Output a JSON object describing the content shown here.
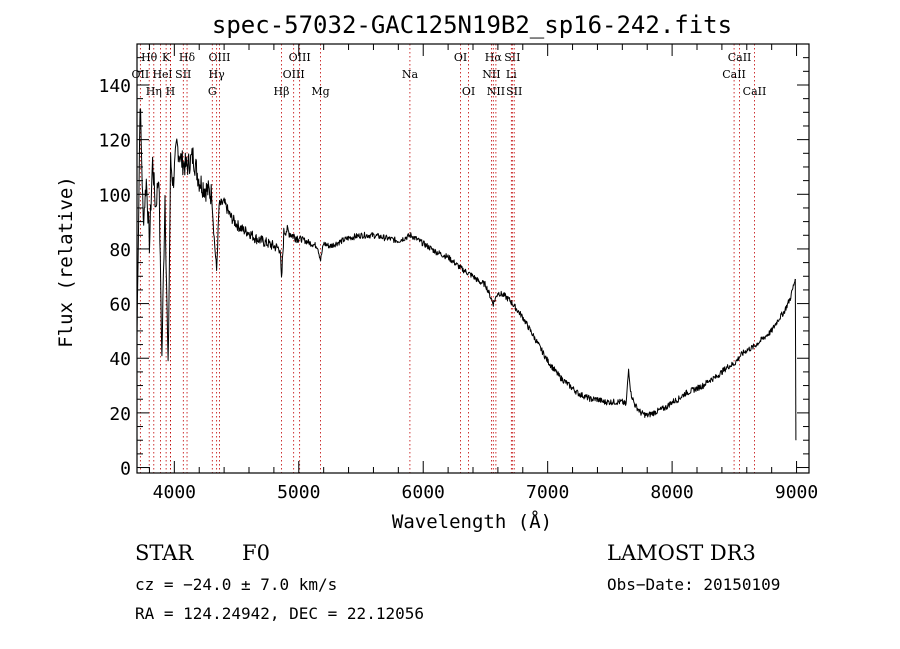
{
  "chart_data": {
    "type": "line",
    "title": "spec-57032-GAC125N19B2_sp16-242.fits",
    "xlabel": "Wavelength (Å)",
    "ylabel": "Flux (relative)",
    "xlim": [
      3700,
      9100
    ],
    "ylim": [
      -2,
      155
    ],
    "xticks": [
      4000,
      5000,
      6000,
      7000,
      8000,
      9000
    ],
    "yticks": [
      0,
      20,
      40,
      60,
      80,
      100,
      120,
      140
    ],
    "grid": false,
    "series": [
      {
        "name": "flux",
        "x": [
          3700,
          3725,
          3750,
          3775,
          3800,
          3825,
          3850,
          3875,
          3900,
          3925,
          3950,
          3970,
          3990,
          4020,
          4060,
          4100,
          4150,
          4200,
          4250,
          4300,
          4320,
          4340,
          4360,
          4400,
          4450,
          4500,
          4550,
          4600,
          4650,
          4700,
          4750,
          4800,
          4850,
          4861,
          4880,
          4900,
          4950,
          5000,
          5050,
          5100,
          5150,
          5175,
          5200,
          5250,
          5300,
          5400,
          5500,
          5600,
          5700,
          5800,
          5900,
          6000,
          6100,
          6200,
          6300,
          6400,
          6450,
          6500,
          6563,
          6600,
          6650,
          6700,
          6750,
          6800,
          6850,
          6900,
          6950,
          7000,
          7050,
          7100,
          7150,
          7200,
          7250,
          7300,
          7350,
          7400,
          7450,
          7500,
          7550,
          7600,
          7630,
          7650,
          7670,
          7700,
          7750,
          7800,
          7850,
          7900,
          7950,
          8000,
          8050,
          8100,
          8150,
          8200,
          8250,
          8300,
          8350,
          8400,
          8450,
          8500,
          8550,
          8600,
          8650,
          8700,
          8750,
          8800,
          8850,
          8900,
          8950,
          8990
        ],
        "y": [
          48,
          135,
          90,
          105,
          82,
          112,
          95,
          108,
          40,
          100,
          35,
          112,
          104,
          118,
          112,
          110,
          114,
          105,
          102,
          100,
          84,
          72,
          96,
          97,
          92,
          89,
          87,
          86,
          84,
          83,
          82,
          81,
          80,
          68,
          86,
          87,
          85,
          84,
          83,
          82,
          81,
          76,
          82,
          81,
          82,
          84,
          85,
          85,
          84,
          83,
          85,
          82,
          79,
          77,
          73,
          70,
          68,
          67,
          60,
          64,
          63,
          61,
          58,
          55,
          51,
          47,
          43,
          39,
          36,
          33,
          31,
          29,
          27,
          26,
          25,
          25,
          24,
          24,
          24,
          24,
          23,
          36,
          27,
          23,
          20,
          19,
          20,
          21,
          22,
          24,
          25,
          27,
          28,
          29,
          30,
          32,
          33,
          35,
          37,
          38,
          41,
          43,
          44,
          46,
          48,
          50,
          54,
          57,
          62,
          69
        ]
      }
    ],
    "lines": [
      {
        "label": "Hθ",
        "x": 3798,
        "row": 0
      },
      {
        "label": "K",
        "x": 3934,
        "row": 0
      },
      {
        "label": "Hδ",
        "x": 4102,
        "row": 0
      },
      {
        "label": "OIII",
        "x": 4363,
        "row": 0
      },
      {
        "label": "OIII",
        "x": 5007,
        "row": 0
      },
      {
        "label": "OI",
        "x": 6300,
        "row": 0
      },
      {
        "label": "Hα",
        "x": 6563,
        "row": 0
      },
      {
        "label": "SII",
        "x": 6716,
        "row": 0
      },
      {
        "label": "CaII",
        "x": 8542,
        "row": 0
      },
      {
        "label": "OII",
        "x": 3727,
        "row": 1
      },
      {
        "label": "He",
        "x": 3889,
        "row": 1
      },
      {
        "label": "I",
        "x": 3969,
        "row": 1
      },
      {
        "label": "SII",
        "x": 4072,
        "row": 1
      },
      {
        "label": "Hγ",
        "x": 4340,
        "row": 1
      },
      {
        "label": "OIII",
        "x": 4959,
        "row": 1
      },
      {
        "label": "Na",
        "x": 5893,
        "row": 1
      },
      {
        "label": "NII",
        "x": 6548,
        "row": 1
      },
      {
        "label": "Li",
        "x": 6708,
        "row": 1
      },
      {
        "label": "CaII",
        "x": 8498,
        "row": 1
      },
      {
        "label": "Hη",
        "x": 3835,
        "row": 2
      },
      {
        "label": "H",
        "x": 3969,
        "row": 2
      },
      {
        "label": "G",
        "x": 4305,
        "row": 2
      },
      {
        "label": "Hβ",
        "x": 4861,
        "row": 2
      },
      {
        "label": "Mg",
        "x": 5175,
        "row": 2
      },
      {
        "label": "OI",
        "x": 6364,
        "row": 2
      },
      {
        "label": "NII",
        "x": 6584,
        "row": 2
      },
      {
        "label": "SII",
        "x": 6731,
        "row": 2
      },
      {
        "label": "CaII",
        "x": 8662,
        "row": 2
      }
    ],
    "line_color": "#c00000"
  },
  "info": {
    "object_class": "STAR",
    "subclass": "F0",
    "cz": "cz = −24.0 ± 7.0 km/s",
    "coords": "RA = 124.24942, DEC =  22.12056",
    "survey": "LAMOST DR3",
    "obs_date": "Obs−Date: 20150109"
  }
}
